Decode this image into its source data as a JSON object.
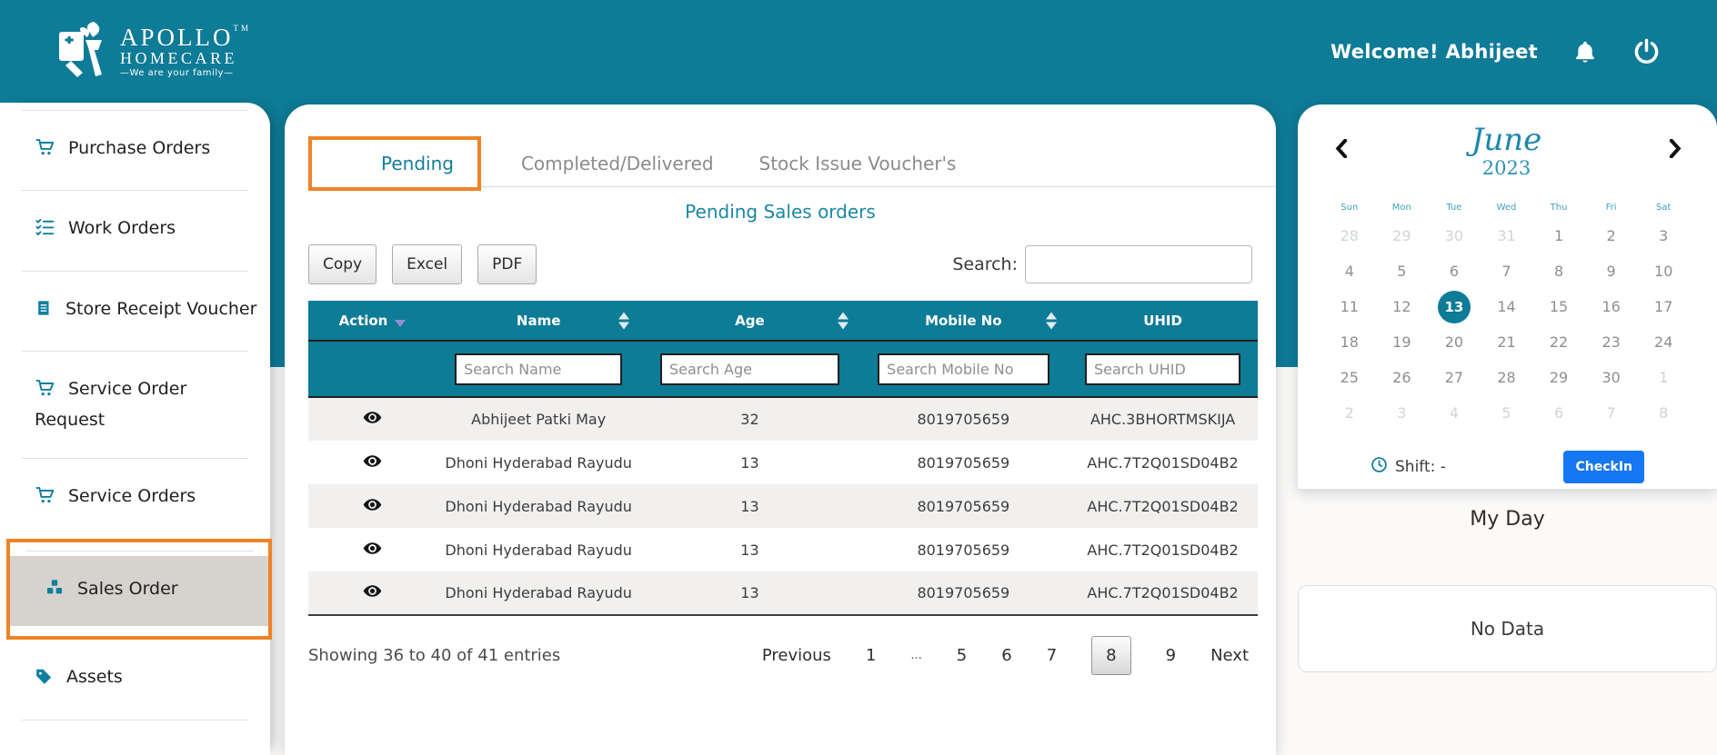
{
  "theme": {
    "teal": "#0e7b97",
    "annotation_orange": "#ef8227",
    "checkin_blue": "#1677f2",
    "selected_day_bg": "#0e7b97"
  },
  "header": {
    "logo": {
      "line1": "APOLLO",
      "tm": "TM",
      "line2": "HOMECARE",
      "tagline": "—We are your family—"
    },
    "welcome": "Welcome! Abhijeet"
  },
  "sidebar": {
    "items": [
      {
        "label": "Purchase Orders",
        "icon": "cart-icon",
        "active": false
      },
      {
        "label": "Work Orders",
        "icon": "list-check-icon",
        "active": false
      },
      {
        "label": "Store Receipt Voucher",
        "icon": "receipt-icon",
        "active": false
      },
      {
        "label": "Service Order Request",
        "icon": "cart-icon",
        "active": false
      },
      {
        "label": "Service Orders",
        "icon": "cart-icon",
        "active": false
      },
      {
        "label": "Sales Order",
        "icon": "boxes-icon",
        "active": true
      },
      {
        "label": "Assets",
        "icon": "tag-icon",
        "active": false
      }
    ]
  },
  "main": {
    "tabs": [
      {
        "label": "Pending",
        "active": true
      },
      {
        "label": "Completed/Delivered",
        "active": false
      },
      {
        "label": "Stock Issue Voucher's",
        "active": false
      }
    ],
    "title": "Pending Sales orders",
    "export_buttons": {
      "copy": "Copy",
      "excel": "Excel",
      "pdf": "PDF"
    },
    "search": {
      "label": "Search:",
      "value": ""
    },
    "table": {
      "columns": [
        "Action",
        "Name",
        "Age",
        "Mobile No",
        "UHID"
      ],
      "filters": [
        "Search Name",
        "Search Age",
        "Search Mobile No",
        "Search UHID"
      ],
      "sort": {
        "action": "desc"
      },
      "rows": [
        {
          "name": "Abhijeet Patki May",
          "age": "32",
          "mobile": "8019705659",
          "uhid": "AHC.3BHORTMSKIJA"
        },
        {
          "name": "Dhoni Hyderabad Rayudu",
          "age": "13",
          "mobile": "8019705659",
          "uhid": "AHC.7T2Q01SD04B2"
        },
        {
          "name": "Dhoni Hyderabad Rayudu",
          "age": "13",
          "mobile": "8019705659",
          "uhid": "AHC.7T2Q01SD04B2"
        },
        {
          "name": "Dhoni Hyderabad Rayudu",
          "age": "13",
          "mobile": "8019705659",
          "uhid": "AHC.7T2Q01SD04B2"
        },
        {
          "name": "Dhoni Hyderabad Rayudu",
          "age": "13",
          "mobile": "8019705659",
          "uhid": "AHC.7T2Q01SD04B2"
        }
      ]
    },
    "pagination": {
      "summary": "Showing 36 to 40 of 41 entries",
      "items": [
        {
          "label": "Previous",
          "type": "nav"
        },
        {
          "label": "1",
          "type": "page"
        },
        {
          "label": "...",
          "type": "dots"
        },
        {
          "label": "5",
          "type": "page"
        },
        {
          "label": "6",
          "type": "page"
        },
        {
          "label": "7",
          "type": "page"
        },
        {
          "label": "8",
          "type": "page",
          "active": true
        },
        {
          "label": "9",
          "type": "page"
        },
        {
          "label": "Next",
          "type": "nav"
        }
      ]
    }
  },
  "calendar": {
    "month": "June",
    "year": "2023",
    "day_names": [
      "Sun",
      "Mon",
      "Tue",
      "Wed",
      "Thu",
      "Fri",
      "Sat"
    ],
    "cells": [
      {
        "d": "28",
        "muted": true
      },
      {
        "d": "29",
        "muted": true
      },
      {
        "d": "30",
        "muted": true
      },
      {
        "d": "31",
        "muted": true
      },
      {
        "d": "1"
      },
      {
        "d": "2"
      },
      {
        "d": "3"
      },
      {
        "d": "4"
      },
      {
        "d": "5"
      },
      {
        "d": "6"
      },
      {
        "d": "7"
      },
      {
        "d": "8"
      },
      {
        "d": "9"
      },
      {
        "d": "10"
      },
      {
        "d": "11"
      },
      {
        "d": "12"
      },
      {
        "d": "13",
        "selected": true
      },
      {
        "d": "14"
      },
      {
        "d": "15"
      },
      {
        "d": "16"
      },
      {
        "d": "17"
      },
      {
        "d": "18"
      },
      {
        "d": "19"
      },
      {
        "d": "20"
      },
      {
        "d": "21"
      },
      {
        "d": "22"
      },
      {
        "d": "23"
      },
      {
        "d": "24"
      },
      {
        "d": "25"
      },
      {
        "d": "26"
      },
      {
        "d": "27"
      },
      {
        "d": "28"
      },
      {
        "d": "29"
      },
      {
        "d": "30"
      },
      {
        "d": "1",
        "muted": true
      },
      {
        "d": "2",
        "muted": true
      },
      {
        "d": "3",
        "muted": true
      },
      {
        "d": "4",
        "muted": true
      },
      {
        "d": "5",
        "muted": true
      },
      {
        "d": "6",
        "muted": true
      },
      {
        "d": "7",
        "muted": true
      },
      {
        "d": "8",
        "muted": true
      }
    ]
  },
  "shift": {
    "label": "Shift: -",
    "checkin": "CheckIn"
  },
  "my_day": {
    "title": "My Day",
    "empty": "No Data"
  }
}
